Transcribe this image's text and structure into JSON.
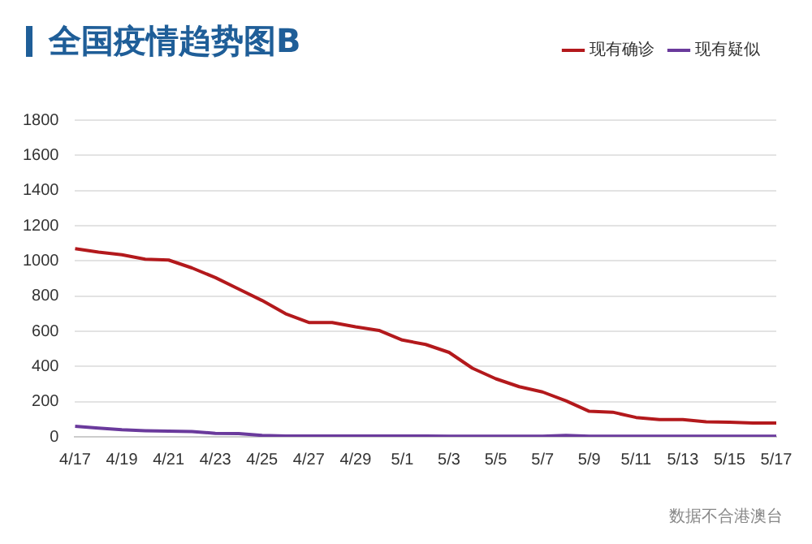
{
  "chart_data": {
    "type": "line",
    "title": "全国疫情趋势图B",
    "categories": [
      "4/17",
      null,
      "4/19",
      null,
      "4/21",
      null,
      "4/23",
      null,
      "4/25",
      null,
      "4/27",
      null,
      "4/29",
      null,
      "5/1",
      null,
      "5/3",
      null,
      "5/5",
      null,
      "5/7",
      null,
      "5/9",
      null,
      "5/11",
      null,
      "5/13",
      null,
      "5/15",
      null,
      "5/17"
    ],
    "series": [
      {
        "name": "现有确诊",
        "color": "#b3191c",
        "values": [
          1070,
          1050,
          1035,
          1010,
          1005,
          960,
          905,
          840,
          775,
          700,
          650,
          650,
          625,
          605,
          550,
          525,
          480,
          390,
          330,
          285,
          255,
          205,
          145,
          140,
          110,
          98,
          98,
          85,
          83,
          78,
          78
        ]
      },
      {
        "name": "现有疑似",
        "color": "#6a3a9c",
        "values": [
          60,
          50,
          40,
          35,
          32,
          30,
          20,
          18,
          8,
          5,
          5,
          5,
          5,
          5,
          5,
          5,
          3,
          3,
          3,
          3,
          3,
          8,
          3,
          3,
          3,
          3,
          3,
          3,
          3,
          3,
          3
        ]
      }
    ],
    "ylim": [
      0,
      1800
    ],
    "yticks": [
      0,
      200,
      400,
      600,
      800,
      1000,
      1200,
      1400,
      1600,
      1800
    ],
    "grid": "y",
    "legend": "top right",
    "marker": "none",
    "line_style": "solid",
    "annotations": [
      "数据不合港澳台"
    ]
  }
}
